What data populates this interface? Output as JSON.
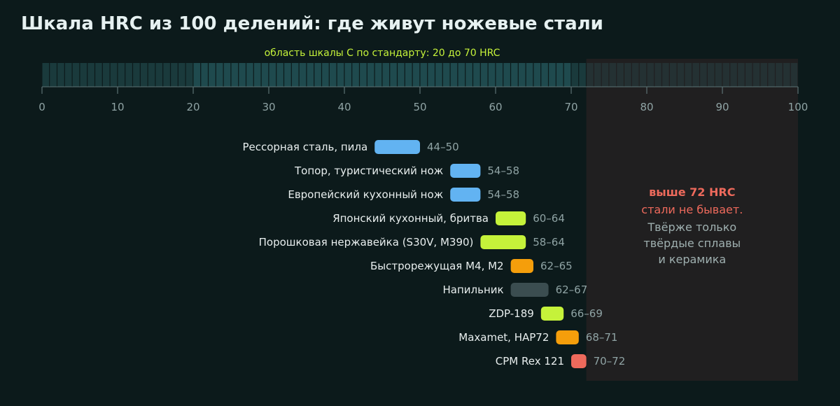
{
  "chart_data": {
    "type": "bar",
    "title": "Шкала HRC из 100 делений: где живут ножевые стали",
    "subtitle": "область шкалы С по стандарту: 20 до 70 HRC",
    "x_range": [
      0,
      100
    ],
    "x_ticks": [
      0,
      10,
      20,
      30,
      40,
      50,
      60,
      70,
      80,
      90,
      100
    ],
    "standard_range": [
      20,
      70
    ],
    "impossible_from": 72,
    "bars": [
      {
        "label": "Рессорная сталь, пила",
        "min": 44,
        "max": 50,
        "range_text": "44–50",
        "color": "#62b3f2"
      },
      {
        "label": "Топор, туристический нож",
        "min": 54,
        "max": 58,
        "range_text": "54–58",
        "color": "#62b3f2"
      },
      {
        "label": "Европейский кухонный нож",
        "min": 54,
        "max": 58,
        "range_text": "54–58",
        "color": "#62b3f2"
      },
      {
        "label": "Японский кухонный, бритва",
        "min": 60,
        "max": 64,
        "range_text": "60–64",
        "color": "#c5f23a"
      },
      {
        "label": "Порошковая нержавейка (S30V, M390)",
        "min": 58,
        "max": 64,
        "range_text": "58–64",
        "color": "#c5f23a"
      },
      {
        "label": "Быстрорежущая M4, M2",
        "min": 62,
        "max": 65,
        "range_text": "62–65",
        "color": "#f59e0b"
      },
      {
        "label": "Напильник",
        "min": 62,
        "max": 67,
        "range_text": "62–67",
        "color": "#3b4d50"
      },
      {
        "label": "ZDP-189",
        "min": 66,
        "max": 69,
        "range_text": "66–69",
        "color": "#c5f23a"
      },
      {
        "label": "Maxamet, HAP72",
        "min": 68,
        "max": 71,
        "range_text": "68–71",
        "color": "#f59e0b"
      },
      {
        "label": "CPM Rex 121",
        "min": 70,
        "max": 72,
        "range_text": "70–72",
        "color": "#ee6a5c"
      }
    ],
    "annotation": {
      "line1": "выше 72 HRC",
      "line2": "стали не бывает.",
      "line3": "Твёрже только",
      "line4": "твёрдые сплавы",
      "line5": "и керамика"
    }
  },
  "colors": {
    "background": "#0c1a1b",
    "scale_cell_standard": "#1f4a4e",
    "scale_cell_outside": "#1a3a3c",
    "scale_cell_impossible": "#243133",
    "impossible_panel": "#201f20",
    "annotation_accent": "#ee6a5c"
  }
}
